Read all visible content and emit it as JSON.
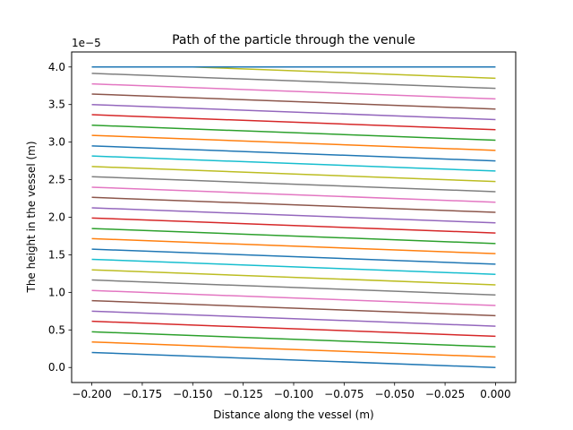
{
  "chart_data": {
    "type": "line",
    "title": "Path of the particle through the venule",
    "xlabel": "Distance along the vessel (m)",
    "ylabel": "The height in the vessel (m)",
    "y_offset_label": "1e−5",
    "xlim": [
      -0.21,
      0.01
    ],
    "ylim": [
      -0.2,
      4.2
    ],
    "x_ticks": [
      -0.2,
      -0.175,
      -0.15,
      -0.125,
      -0.1,
      -0.075,
      -0.05,
      -0.025,
      0.0
    ],
    "x_tick_labels": [
      "−0.200",
      "−0.175",
      "−0.150",
      "−0.125",
      "−0.100",
      "−0.075",
      "−0.050",
      "−0.025",
      "0.000"
    ],
    "y_ticks": [
      0,
      0.5,
      1.0,
      1.5,
      2.0,
      2.5,
      3.0,
      3.5,
      4.0
    ],
    "y_tick_labels": [
      "0.0",
      "0.5",
      "1.0",
      "1.5",
      "2.0",
      "2.5",
      "3.0",
      "3.5",
      "4.0"
    ],
    "grid": false,
    "series": [
      {
        "x": [
          -0.2,
          0.0
        ],
        "y": [
          0.2,
          0.0
        ],
        "color": "#1f77b4"
      },
      {
        "x": [
          -0.2,
          0.0
        ],
        "y": [
          0.34,
          0.14
        ],
        "color": "#ff7f0e"
      },
      {
        "x": [
          -0.2,
          0.0
        ],
        "y": [
          0.475,
          0.275
        ],
        "color": "#2ca02c"
      },
      {
        "x": [
          -0.2,
          0.0
        ],
        "y": [
          0.615,
          0.415
        ],
        "color": "#d62728"
      },
      {
        "x": [
          -0.2,
          0.0
        ],
        "y": [
          0.75,
          0.55
        ],
        "color": "#9467bd"
      },
      {
        "x": [
          -0.2,
          0.0
        ],
        "y": [
          0.89,
          0.69
        ],
        "color": "#8c564b"
      },
      {
        "x": [
          -0.2,
          0.0
        ],
        "y": [
          1.025,
          0.825
        ],
        "color": "#e377c2"
      },
      {
        "x": [
          -0.2,
          0.0
        ],
        "y": [
          1.165,
          0.965
        ],
        "color": "#7f7f7f"
      },
      {
        "x": [
          -0.2,
          0.0
        ],
        "y": [
          1.3,
          1.1
        ],
        "color": "#bcbd22"
      },
      {
        "x": [
          -0.2,
          0.0
        ],
        "y": [
          1.44,
          1.24
        ],
        "color": "#17becf"
      },
      {
        "x": [
          -0.2,
          0.0
        ],
        "y": [
          1.575,
          1.375
        ],
        "color": "#1f77b4"
      },
      {
        "x": [
          -0.2,
          0.0
        ],
        "y": [
          1.715,
          1.515
        ],
        "color": "#ff7f0e"
      },
      {
        "x": [
          -0.2,
          0.0
        ],
        "y": [
          1.85,
          1.65
        ],
        "color": "#2ca02c"
      },
      {
        "x": [
          -0.2,
          0.0
        ],
        "y": [
          1.99,
          1.79
        ],
        "color": "#d62728"
      },
      {
        "x": [
          -0.2,
          0.0
        ],
        "y": [
          2.125,
          1.925
        ],
        "color": "#9467bd"
      },
      {
        "x": [
          -0.2,
          0.0
        ],
        "y": [
          2.265,
          2.065
        ],
        "color": "#8c564b"
      },
      {
        "x": [
          -0.2,
          0.0
        ],
        "y": [
          2.4,
          2.2
        ],
        "color": "#e377c2"
      },
      {
        "x": [
          -0.2,
          0.0
        ],
        "y": [
          2.54,
          2.34
        ],
        "color": "#7f7f7f"
      },
      {
        "x": [
          -0.2,
          0.0
        ],
        "y": [
          2.675,
          2.475
        ],
        "color": "#bcbd22"
      },
      {
        "x": [
          -0.2,
          0.0
        ],
        "y": [
          2.815,
          2.615
        ],
        "color": "#17becf"
      },
      {
        "x": [
          -0.2,
          0.0
        ],
        "y": [
          2.95,
          2.75
        ],
        "color": "#1f77b4"
      },
      {
        "x": [
          -0.2,
          0.0
        ],
        "y": [
          3.09,
          2.89
        ],
        "color": "#ff7f0e"
      },
      {
        "x": [
          -0.2,
          0.0
        ],
        "y": [
          3.225,
          3.025
        ],
        "color": "#2ca02c"
      },
      {
        "x": [
          -0.2,
          0.0
        ],
        "y": [
          3.365,
          3.165
        ],
        "color": "#d62728"
      },
      {
        "x": [
          -0.2,
          0.0
        ],
        "y": [
          3.5,
          3.3
        ],
        "color": "#9467bd"
      },
      {
        "x": [
          -0.2,
          0.0
        ],
        "y": [
          3.64,
          3.44
        ],
        "color": "#8c564b"
      },
      {
        "x": [
          -0.2,
          0.0
        ],
        "y": [
          3.775,
          3.575
        ],
        "color": "#e377c2"
      },
      {
        "x": [
          -0.2,
          0.0
        ],
        "y": [
          3.915,
          3.715
        ],
        "color": "#7f7f7f"
      },
      {
        "x": [
          -0.2,
          -0.15,
          0.0
        ],
        "y": [
          4.0,
          4.0,
          3.85
        ],
        "color": "#bcbd22"
      },
      {
        "x": [
          -0.2,
          0.0
        ],
        "y": [
          4.0,
          4.0
        ],
        "color": "#1f77b4"
      }
    ]
  }
}
